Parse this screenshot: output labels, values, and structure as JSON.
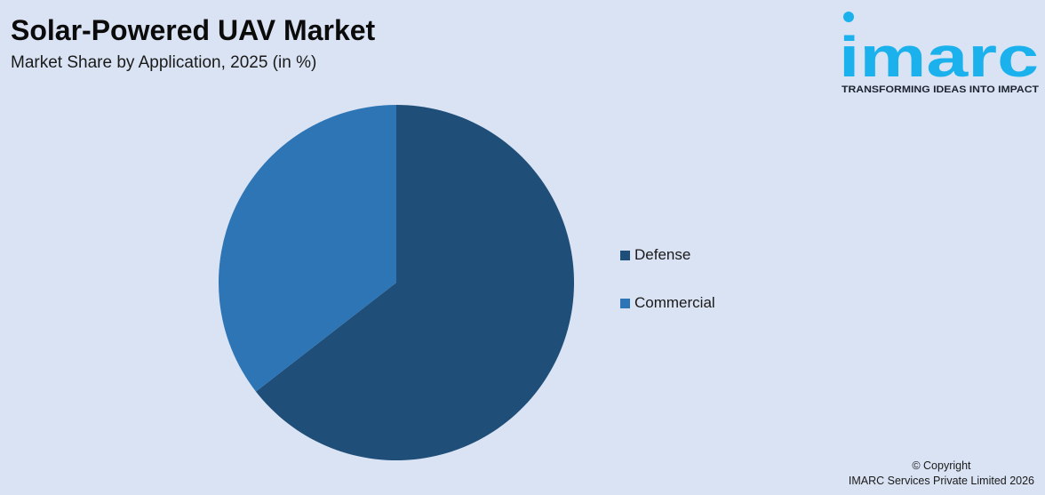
{
  "header": {
    "title": "Solar-Powered UAV Market",
    "subtitle": "Market Share by Application, 2025 (in %)"
  },
  "logo": {
    "wordmark": "imarc",
    "tagline": "TRANSFORMING IDEAS INTO IMPACT",
    "color": "#1ab1ed"
  },
  "chart_data": {
    "type": "pie",
    "categories": [
      "Defense",
      "Commercial"
    ],
    "values": [
      64.5,
      35.5
    ],
    "colors": [
      "#1f4e79",
      "#2e75b6"
    ],
    "legend_position": "right"
  },
  "footer": {
    "copyright_line1": "© Copyright",
    "copyright_line2": "IMARC Services Private Limited 2026"
  }
}
